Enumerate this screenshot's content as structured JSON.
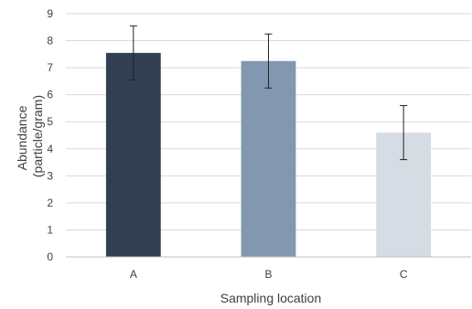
{
  "chart_data": {
    "type": "bar",
    "xlabel": "Sampling location",
    "ylabel_lines": [
      "Abundance",
      "(particle/gram)"
    ],
    "categories": [
      "A",
      "B",
      "C"
    ],
    "values": [
      7.55,
      7.25,
      4.6
    ],
    "errors": [
      1.0,
      1.0,
      1.0
    ],
    "bar_colors": [
      "#323f52",
      "#8497b0",
      "#d6dce4"
    ],
    "ylim": [
      0,
      9
    ],
    "yticks": [
      0,
      1,
      2,
      3,
      4,
      5,
      6,
      7,
      8,
      9
    ],
    "grid": true
  }
}
